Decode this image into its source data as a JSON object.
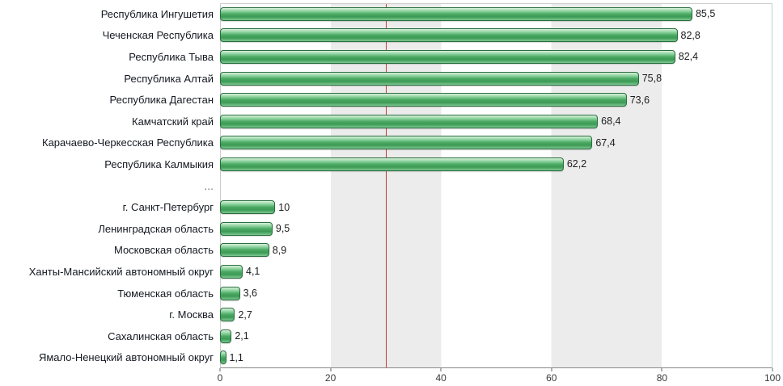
{
  "chart_data": {
    "type": "bar",
    "orientation": "horizontal",
    "title": "",
    "xlabel": "",
    "ylabel": "",
    "xlim": [
      0,
      100
    ],
    "x_ticks": [
      0,
      20,
      40,
      60,
      80,
      100
    ],
    "grid": "vertical-bands",
    "plot_bg_color": "#ffffff",
    "band_color": "#ececec",
    "bar_color": "#4aa963",
    "bar_border_color": "#2a6e3f",
    "reference_line": {
      "value": 30,
      "color": "#c43b3b"
    },
    "rows": [
      {
        "label": "Республика Ингушетия",
        "value": 85.5,
        "display": "85,5"
      },
      {
        "label": "Чеченская Республика",
        "value": 82.8,
        "display": "82,8"
      },
      {
        "label": "Республика Тыва",
        "value": 82.4,
        "display": "82,4"
      },
      {
        "label": "Республика Алтай",
        "value": 75.8,
        "display": "75,8"
      },
      {
        "label": "Республика Дагестан",
        "value": 73.6,
        "display": "73,6"
      },
      {
        "label": "Камчатский край",
        "value": 68.4,
        "display": "68,4"
      },
      {
        "label": "Карачаево-Черкесская Республика",
        "value": 67.4,
        "display": "67,4"
      },
      {
        "label": "Республика Калмыкия",
        "value": 62.2,
        "display": "62,2"
      },
      {
        "label": "...",
        "value": null,
        "display": "",
        "separator": true
      },
      {
        "label": "г. Санкт-Петербург",
        "value": 10,
        "display": "10"
      },
      {
        "label": "Ленинградская область",
        "value": 9.5,
        "display": "9,5"
      },
      {
        "label": "Московская область",
        "value": 8.9,
        "display": "8,9"
      },
      {
        "label": "Ханты-Мансийский автономный округ",
        "value": 4.1,
        "display": "4,1"
      },
      {
        "label": "Тюменская область",
        "value": 3.6,
        "display": "3,6"
      },
      {
        "label": "г. Москва",
        "value": 2.7,
        "display": "2,7"
      },
      {
        "label": "Сахалинская область",
        "value": 2.1,
        "display": "2,1"
      },
      {
        "label": "Ямало-Ненецкий автономный округ",
        "value": 1.1,
        "display": "1,1"
      }
    ]
  }
}
